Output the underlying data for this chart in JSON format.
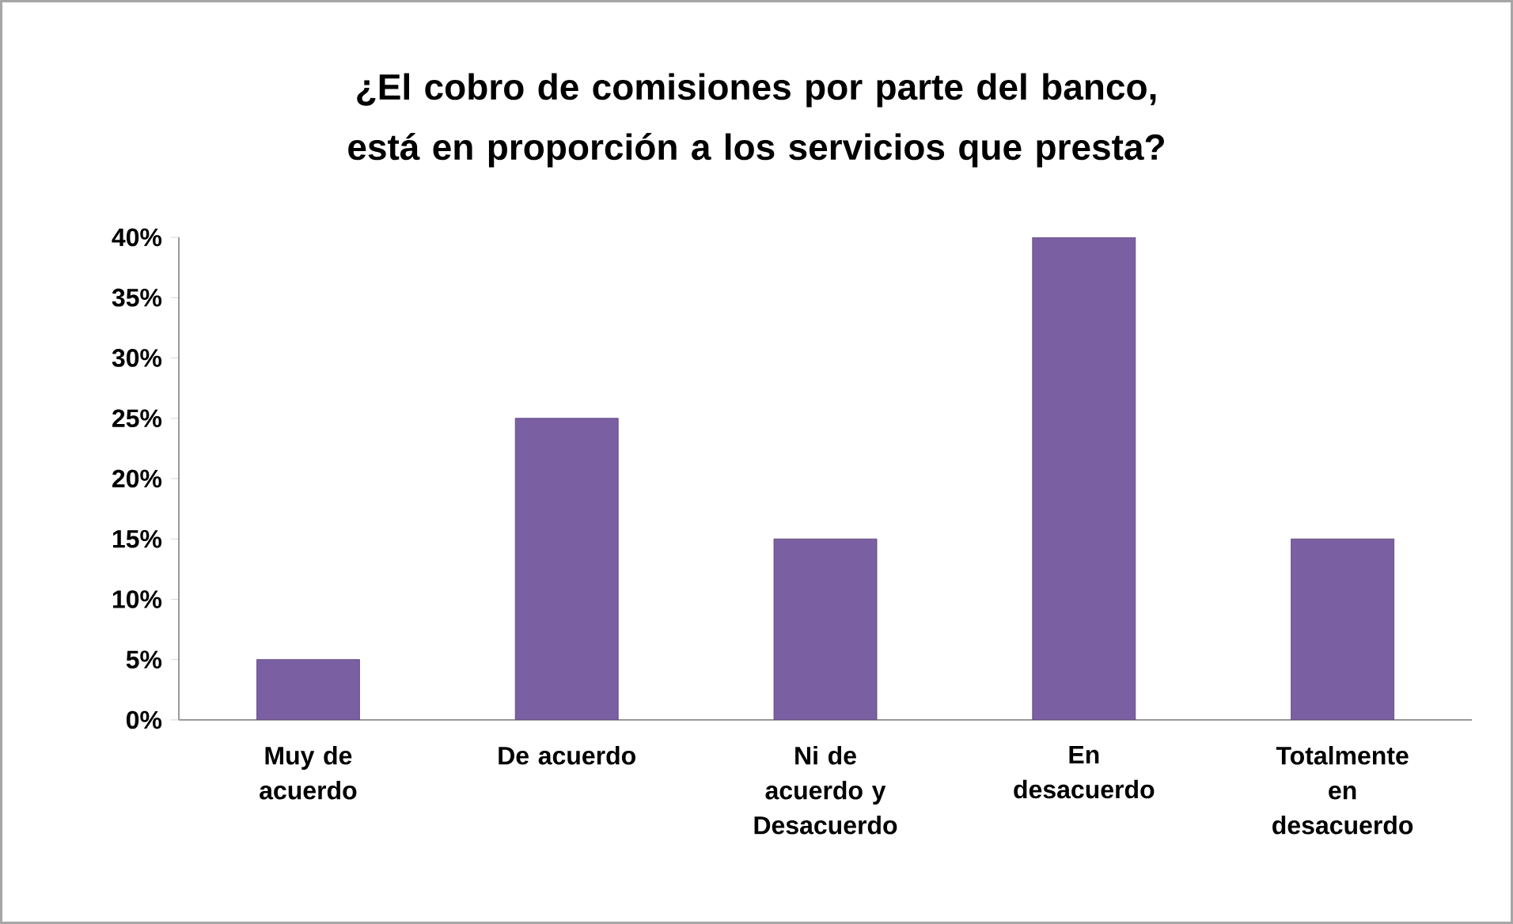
{
  "chart_data": {
    "type": "bar",
    "title": "¿El cobro de comisiones por parte del banco, está en proporción a los servicios que presta?",
    "categories": [
      "Muy de acuerdo",
      "De acuerdo",
      "Ni de acuerdo y Desacuerdo",
      "En desacuerdo",
      "Totalmente en desacuerdo"
    ],
    "values": [
      5,
      25,
      15,
      40,
      15
    ],
    "color": "#7b5fa3",
    "ylim": [
      0,
      40
    ],
    "yticks": [
      {
        "value": 0,
        "label": "0%"
      },
      {
        "value": 5,
        "label": "5%"
      },
      {
        "value": 10,
        "label": "10%"
      },
      {
        "value": 15,
        "label": "15%"
      },
      {
        "value": 20,
        "label": "20%"
      },
      {
        "value": 25,
        "label": "25%"
      },
      {
        "value": 30,
        "label": "30%"
      },
      {
        "value": 35,
        "label": "35%"
      },
      {
        "value": 40,
        "label": "40%"
      }
    ]
  }
}
